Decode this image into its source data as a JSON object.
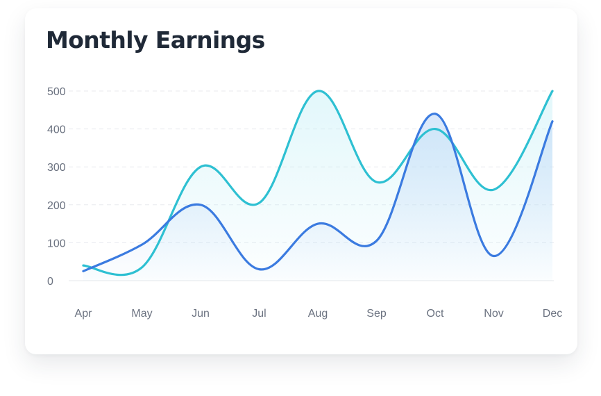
{
  "chart_data": {
    "type": "line",
    "title": "Monthly Earnings",
    "categories": [
      "Apr",
      "May",
      "Jun",
      "Jul",
      "Aug",
      "Sep",
      "Oct",
      "Nov",
      "Dec"
    ],
    "y_ticks": [
      "500",
      "400",
      "300",
      "200",
      "100",
      "0"
    ],
    "ylim": [
      0,
      500
    ],
    "grid": true,
    "series": [
      {
        "values": [
          40,
          35,
          300,
          205,
          500,
          260,
          400,
          240,
          500
        ],
        "color": "#2ec0d2",
        "fill_color": "#bfeef6"
      },
      {
        "values": [
          25,
          95,
          200,
          30,
          150,
          105,
          440,
          65,
          420
        ],
        "color": "#3b7be0",
        "fill_color": "#b9d4f6"
      }
    ]
  }
}
